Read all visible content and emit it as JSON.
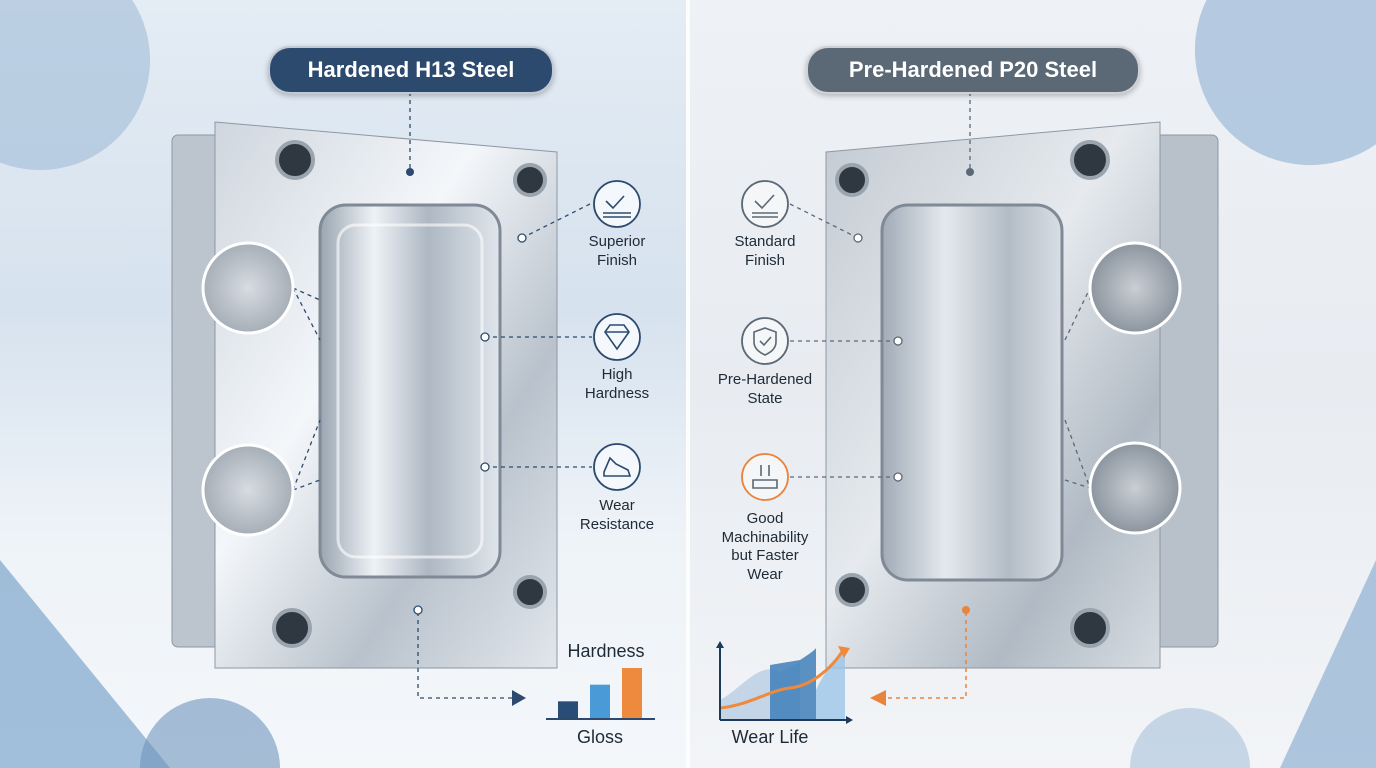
{
  "left": {
    "title": "Hardened H13 Steel",
    "title_color": "#2c4a6e",
    "features": [
      {
        "label_lines": [
          "Superior",
          "Finish"
        ],
        "icon": "sparkle-check-finish-icon"
      },
      {
        "label_lines": [
          "High",
          "Hardness"
        ],
        "icon": "diamond-icon"
      },
      {
        "label_lines": [
          "Wear",
          "Resistance"
        ],
        "icon": "shoe-icon"
      }
    ],
    "chart": {
      "top_label": "Hardness",
      "bottom_label": "Gloss",
      "bar_levels": [
        1,
        2,
        3
      ],
      "bar_colors": [
        "#2a4d78",
        "#4a9ad8",
        "#ee8a3e"
      ]
    }
  },
  "right": {
    "title": "Pre-Hardened P20 Steel",
    "title_color": "#5b6875",
    "features": [
      {
        "label_lines": [
          "Standard",
          "Finish"
        ],
        "icon": "check-finish-icon"
      },
      {
        "label_lines": [
          "Pre-Hardened",
          "State"
        ],
        "icon": "shield-check-icon"
      },
      {
        "label_lines": [
          "Good",
          "Machinability",
          "but Faster",
          "Wear"
        ],
        "icon": "wear-arrows-icon",
        "accent": "#e8843c"
      }
    ],
    "chart": {
      "label": "Wear Life",
      "line_color": "#ee8a3e",
      "area_color": "#4a9ad8"
    }
  },
  "colors": {
    "icon_stroke": "#2c4a6e",
    "icon_stroke_gray": "#5b6875",
    "accent_orange": "#e8843c"
  }
}
